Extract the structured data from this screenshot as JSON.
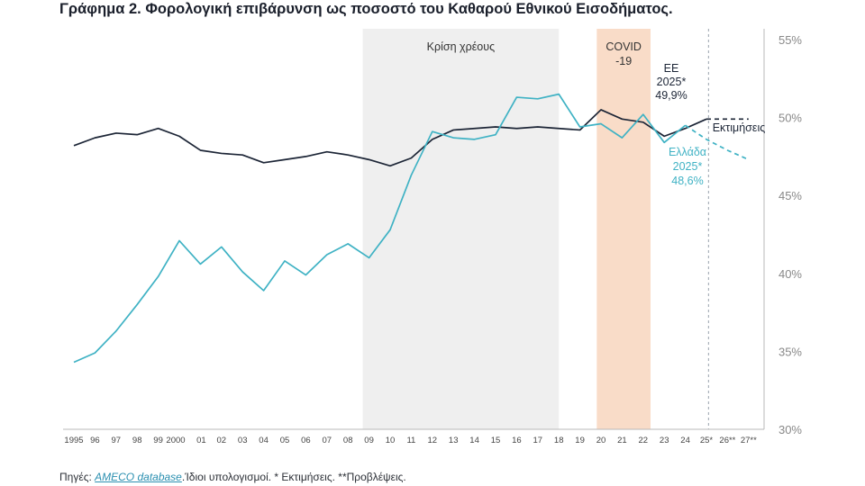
{
  "title": "Γράφημα 2. Φορολογική επιβάρυνση ως ποσοστό του Καθαρού Εθνικού Εισοδήματος.",
  "source": {
    "prefix": "Πηγές: ",
    "link": "AMECO database",
    "suffix": ".Ίδιοι υπολογισμοί. * Εκτιμήσεις. **Προβλέψεις."
  },
  "colors": {
    "eu": "#1c2536",
    "greece": "#3fb2c4",
    "crisis_band": "#efefef",
    "covid_band": "#f9dcc8"
  },
  "chart_data": {
    "type": "line",
    "x_labels": [
      "1995",
      "96",
      "97",
      "98",
      "99",
      "2000",
      "01",
      "02",
      "03",
      "04",
      "05",
      "06",
      "07",
      "08",
      "09",
      "10",
      "11",
      "12",
      "13",
      "14",
      "15",
      "16",
      "17",
      "18",
      "19",
      "20",
      "21",
      "22",
      "23",
      "24",
      "25*",
      "26**",
      "27**"
    ],
    "y_ticks": [
      "55%",
      "50%",
      "45%",
      "40%",
      "35%",
      "30%"
    ],
    "ylim": [
      30,
      55
    ],
    "series": [
      {
        "name": "ΕΕ",
        "values": [
          48.2,
          48.7,
          49.0,
          48.9,
          49.3,
          48.8,
          47.9,
          47.7,
          47.6,
          47.1,
          47.3,
          47.5,
          47.8,
          47.6,
          47.3,
          46.9,
          47.4,
          48.6,
          49.2,
          49.3,
          49.4,
          49.3,
          49.4,
          49.3,
          49.2,
          50.5,
          49.9,
          49.7,
          48.8,
          49.3,
          49.9,
          49.9,
          49.9
        ],
        "projection_from_index": 30
      },
      {
        "name": "Ελλάδα",
        "values": [
          34.3,
          34.9,
          36.3,
          38.0,
          39.8,
          42.1,
          40.6,
          41.7,
          40.1,
          38.9,
          40.8,
          39.9,
          41.2,
          41.9,
          41.0,
          42.8,
          46.3,
          49.1,
          48.7,
          48.6,
          48.9,
          51.3,
          51.2,
          51.5,
          49.4,
          49.6,
          48.7,
          50.2,
          48.4,
          49.5,
          48.6,
          47.9,
          47.3
        ],
        "projection_from_index": 29
      }
    ],
    "bands": [
      {
        "label": "Κρίση χρέους",
        "from": 13.7,
        "to": 23.0
      },
      {
        "label": "COVID\n-19",
        "from": 24.8,
        "to": 27.35
      }
    ],
    "annotations": {
      "eu_label": [
        "ΕΕ",
        "2025*",
        "49,9%"
      ],
      "gr_label": [
        "Ελλάδα",
        "2025*",
        "48,6%"
      ],
      "estimates": "Εκτιμήσεις"
    },
    "grid": false
  }
}
